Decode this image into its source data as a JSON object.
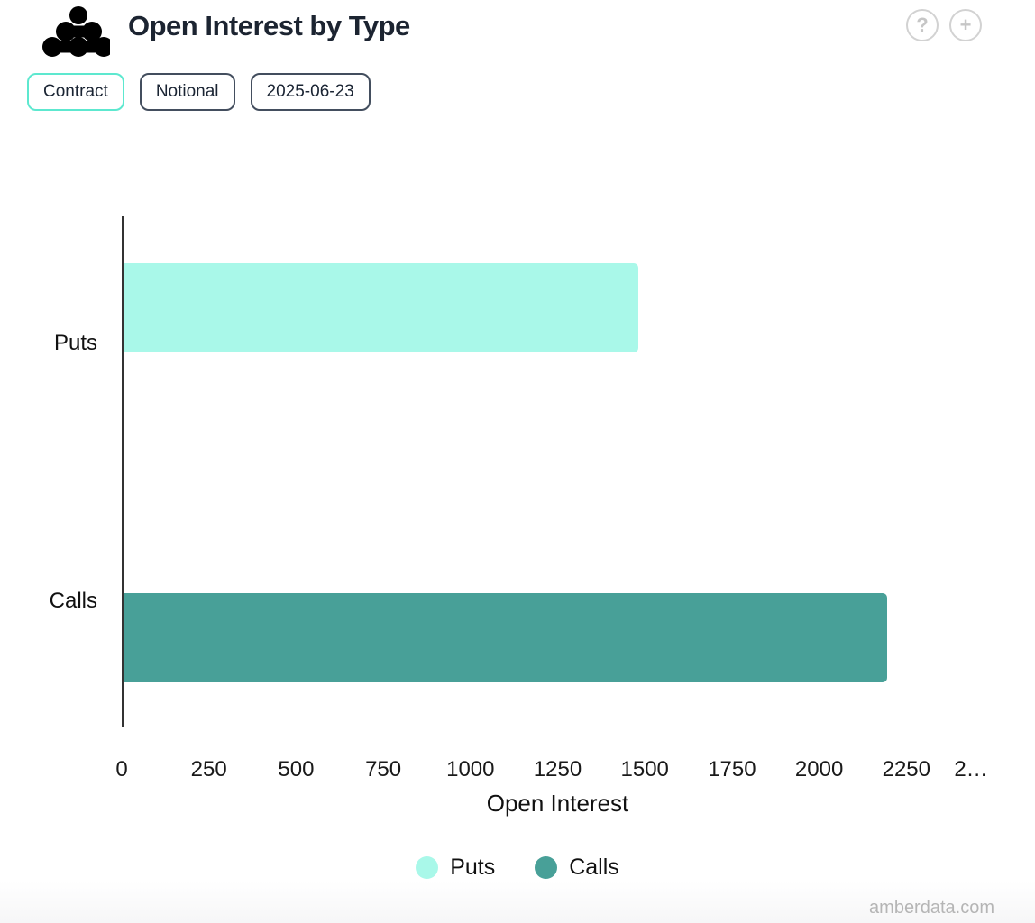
{
  "header": {
    "title": "Open Interest by Type",
    "icons": {
      "help_glyph": "?",
      "plus_glyph": "+"
    }
  },
  "toolbar": {
    "buttons": [
      {
        "id": "contract",
        "label": "Contract",
        "active": true
      },
      {
        "id": "notional",
        "label": "Notional",
        "active": false
      },
      {
        "id": "date",
        "label": "2025-06-23",
        "active": false
      }
    ]
  },
  "chart_data": {
    "type": "bar",
    "orientation": "horizontal",
    "title": "Open Interest by Type",
    "categories": [
      "Puts",
      "Calls"
    ],
    "values": [
      1475,
      2190
    ],
    "bar_colors": [
      "#a9f8e9",
      "#48a098"
    ],
    "xlabel": "Open Interest",
    "xlim": [
      0,
      2500
    ],
    "xticks": [
      {
        "value": 0,
        "label": "0"
      },
      {
        "value": 250,
        "label": "250"
      },
      {
        "value": 500,
        "label": "500"
      },
      {
        "value": 750,
        "label": "750"
      },
      {
        "value": 1000,
        "label": "1000"
      },
      {
        "value": 1250,
        "label": "1250"
      },
      {
        "value": 1500,
        "label": "1500"
      },
      {
        "value": 1750,
        "label": "1750"
      },
      {
        "value": 2000,
        "label": "2000"
      },
      {
        "value": 2250,
        "label": "2250"
      },
      {
        "value": 2500,
        "label": "2…"
      }
    ],
    "grid": false,
    "legend": {
      "position": "bottom",
      "items": [
        {
          "label": "Puts",
          "color": "#a9f8e9"
        },
        {
          "label": "Calls",
          "color": "#48a098"
        }
      ]
    }
  },
  "footer": {
    "watermark": "amberdata.com"
  },
  "colors": {
    "accent_active_border": "#5de8cf",
    "inactive_border": "#434e5e",
    "axis_line": "#333333",
    "text_dark": "#1c2431",
    "watermark_gray": "#b5b5b5"
  }
}
